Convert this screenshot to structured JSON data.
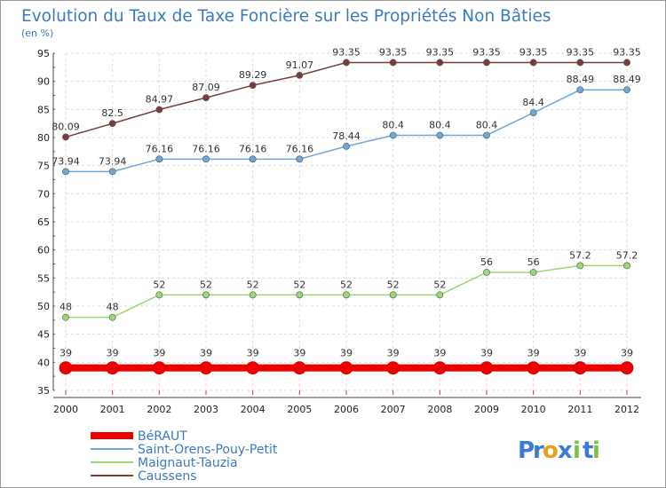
{
  "chart_data": {
    "type": "line",
    "title": "Evolution du Taux de Taxe Foncière sur les Propriétés Non Bâties",
    "subtitle": "(en %)",
    "x": [
      "2000",
      "2001",
      "2002",
      "2003",
      "2004",
      "2005",
      "2006",
      "2007",
      "2008",
      "2009",
      "2010",
      "2011",
      "2012"
    ],
    "ylim": [
      35,
      95
    ],
    "yticks": [
      "35",
      "40",
      "45",
      "50",
      "55",
      "60",
      "65",
      "70",
      "75",
      "80",
      "85",
      "90",
      "95"
    ],
    "grid": true,
    "legend_position": "bottom-left",
    "series": [
      {
        "name": "BéRAUT",
        "color": "#ee0000",
        "values": [
          39,
          39,
          39,
          39,
          39,
          39,
          39,
          39,
          39,
          39,
          39,
          39,
          39
        ],
        "labels": [
          "39",
          "39",
          "39",
          "39",
          "39",
          "39",
          "39",
          "39",
          "39",
          "39",
          "39",
          "39",
          "39"
        ]
      },
      {
        "name": "Saint-Orens-Pouy-Petit",
        "color": "#6fa7d6",
        "values": [
          73.94,
          73.94,
          76.16,
          76.16,
          76.16,
          76.16,
          78.44,
          80.4,
          80.4,
          80.4,
          84.4,
          88.49,
          88.49
        ],
        "labels": [
          "73.94",
          "73.94",
          "76.16",
          "76.16",
          "76.16",
          "76.16",
          "78.44",
          "80.4",
          "80.4",
          "80.4",
          "84.4",
          "88.49",
          "88.49"
        ]
      },
      {
        "name": "Maignaut-Tauzia",
        "color": "#99d873",
        "values": [
          48,
          48,
          52,
          52,
          52,
          52,
          52,
          52,
          52,
          56,
          56,
          57.2,
          57.2
        ],
        "labels": [
          "48",
          "48",
          "52",
          "52",
          "52",
          "52",
          "52",
          "52",
          "52",
          "56",
          "56",
          "57.2",
          "57.2"
        ]
      },
      {
        "name": "Caussens",
        "color": "#7a3c3c",
        "values": [
          80.09,
          82.5,
          84.97,
          87.09,
          89.29,
          91.07,
          93.35,
          93.35,
          93.35,
          93.35,
          93.35,
          93.35,
          93.35
        ],
        "labels": [
          "80.09",
          "82.5",
          "84.97",
          "87.09",
          "89.29",
          "91.07",
          "93.35",
          "93.35",
          "93.35",
          "93.35",
          "93.35",
          "93.35",
          "93.35"
        ]
      }
    ]
  },
  "branding": {
    "logo_text": "Proxiti",
    "logo_letters": [
      "P",
      "r",
      "o",
      "x",
      "i",
      "t",
      "i"
    ],
    "logo_colors": [
      "#3a7bd5",
      "#3a7bd5",
      "#e8a21a",
      "#3a7bd5",
      "#7cc242",
      "#3a7bd5",
      "#7cc242"
    ]
  }
}
